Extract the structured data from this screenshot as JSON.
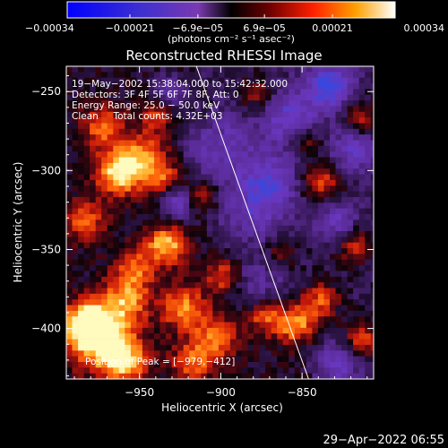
{
  "chart_data": {
    "type": "heatmap",
    "title": "Reconstructed RHESSI Image",
    "xlabel": "Heliocentric X (arcsec)",
    "ylabel": "Heliocentric Y (arcsec)",
    "xlim": [
      -995,
      -806
    ],
    "ylim": [
      -432,
      -234
    ],
    "x_ticks": [
      -950,
      -900,
      -850
    ],
    "x_tick_labels": [
      "−950",
      "−900",
      "−850"
    ],
    "y_ticks": [
      -250,
      -300,
      -350,
      -400
    ],
    "y_tick_labels": [
      "−250",
      "−300",
      "−350",
      "−400"
    ],
    "colorbar": {
      "min": -0.00034,
      "max": 0.00034,
      "ticks": [
        -0.00034,
        -0.00021,
        -6.9e-05,
        6.9e-05,
        0.00021,
        0.00034
      ],
      "tick_labels": [
        "−0.00034",
        "−0.00021",
        "−6.9e−05",
        "6.9e−05",
        "0.00021",
        "0.00034"
      ],
      "unit_label": "(photons cm⁻² s⁻¹ asec⁻²)"
    },
    "annotations": [
      "19−May−2002 15:38:04.000 to 15:42:32.000",
      "Detectors: 3F 4F 5F 6F 7F 8F, Att: 0",
      "Energy Range: 25.0 − 50.0 keV",
      "Clean     Total counts: 4.32E+03"
    ],
    "peak_label": "Position of Peak = [−979,−412]",
    "limb_line": [
      [
        -915,
        -234
      ],
      [
        -846,
        -432
      ]
    ],
    "intensity_blobs": [
      {
        "x": -975,
        "y": -405,
        "v": 1.0,
        "r": 14
      },
      {
        "x": -985,
        "y": -395,
        "v": 0.9,
        "r": 10
      },
      {
        "x": -960,
        "y": -420,
        "v": 0.75,
        "r": 10
      },
      {
        "x": -965,
        "y": -300,
        "v": 0.85,
        "r": 10
      },
      {
        "x": -950,
        "y": -290,
        "v": 0.7,
        "r": 12
      },
      {
        "x": -975,
        "y": -270,
        "v": 0.65,
        "r": 9
      },
      {
        "x": -985,
        "y": -330,
        "v": 0.6,
        "r": 9
      },
      {
        "x": -935,
        "y": -345,
        "v": 0.9,
        "r": 9
      },
      {
        "x": -955,
        "y": -360,
        "v": 0.6,
        "r": 9
      },
      {
        "x": -960,
        "y": -380,
        "v": 0.7,
        "r": 10
      },
      {
        "x": -925,
        "y": -385,
        "v": 0.75,
        "r": 10
      },
      {
        "x": -905,
        "y": -405,
        "v": 0.65,
        "r": 10
      },
      {
        "x": -920,
        "y": -420,
        "v": 0.6,
        "r": 9
      },
      {
        "x": -900,
        "y": -365,
        "v": 0.6,
        "r": 8
      },
      {
        "x": -915,
        "y": -315,
        "v": 0.55,
        "r": 8
      },
      {
        "x": -935,
        "y": -305,
        "v": 0.55,
        "r": 8
      },
      {
        "x": -940,
        "y": -260,
        "v": 0.55,
        "r": 8
      },
      {
        "x": -875,
        "y": -390,
        "v": 0.6,
        "r": 8
      },
      {
        "x": -855,
        "y": -395,
        "v": 0.85,
        "r": 9
      },
      {
        "x": -840,
        "y": -380,
        "v": 0.65,
        "r": 8
      },
      {
        "x": -815,
        "y": -405,
        "v": 0.65,
        "r": 8
      },
      {
        "x": -820,
        "y": -345,
        "v": 0.55,
        "r": 8
      },
      {
        "x": -840,
        "y": -305,
        "v": 0.65,
        "r": 9
      },
      {
        "x": -815,
        "y": -265,
        "v": 0.55,
        "r": 8
      },
      {
        "x": -850,
        "y": -280,
        "v": 0.45,
        "r": 7
      },
      {
        "x": -880,
        "y": -250,
        "v": 0.45,
        "r": 8
      },
      {
        "x": -865,
        "y": -350,
        "v": 0.45,
        "r": 7
      },
      {
        "x": -885,
        "y": -325,
        "v": -0.5,
        "r": 16
      },
      {
        "x": -905,
        "y": -285,
        "v": -0.55,
        "r": 16
      },
      {
        "x": -860,
        "y": -265,
        "v": -0.65,
        "r": 12
      },
      {
        "x": -835,
        "y": -245,
        "v": -0.9,
        "r": 10
      },
      {
        "x": -820,
        "y": -285,
        "v": -0.6,
        "r": 10
      },
      {
        "x": -928,
        "y": -318,
        "v": -0.8,
        "r": 8
      },
      {
        "x": -935,
        "y": -250,
        "v": -0.6,
        "r": 8
      },
      {
        "x": -870,
        "y": -305,
        "v": -0.55,
        "r": 12
      },
      {
        "x": -880,
        "y": -370,
        "v": -0.45,
        "r": 12
      },
      {
        "x": -830,
        "y": -330,
        "v": -0.55,
        "r": 9
      },
      {
        "x": -830,
        "y": -420,
        "v": -0.6,
        "r": 9
      }
    ]
  },
  "footer_timestamp": "29−Apr−2022 06:55"
}
